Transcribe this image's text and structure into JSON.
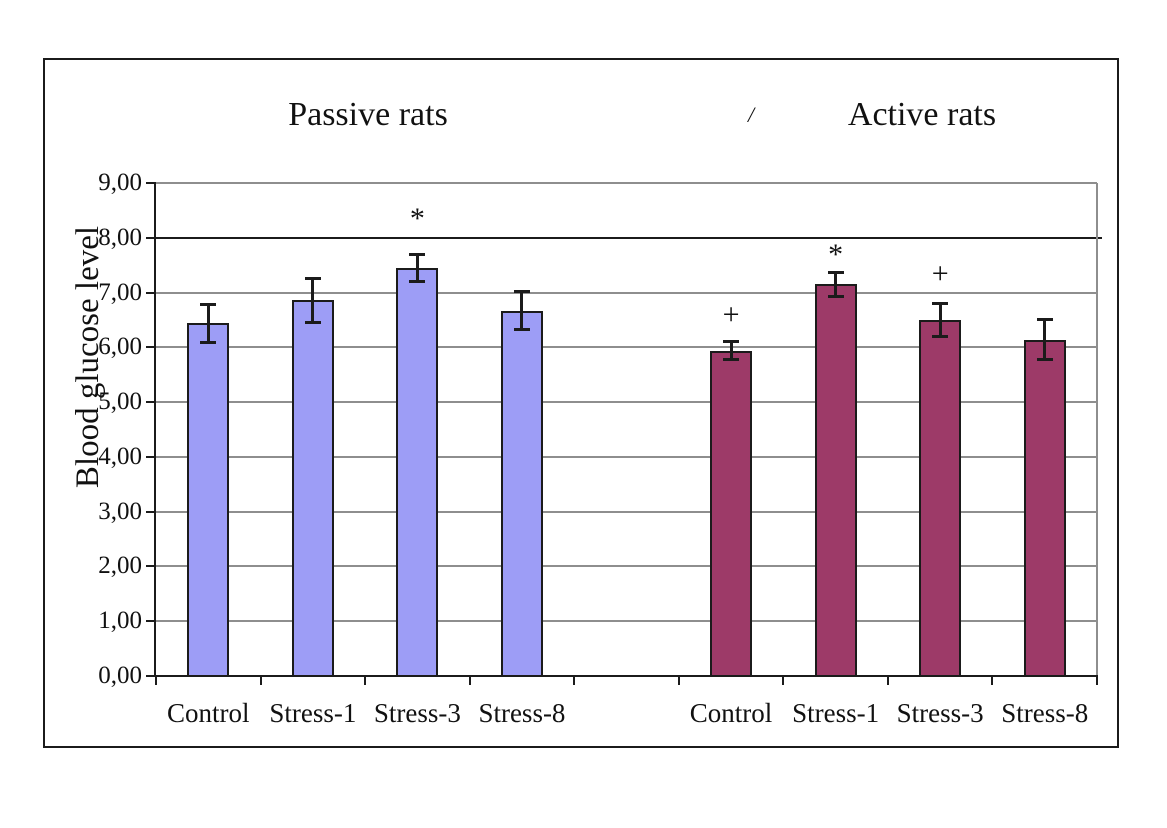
{
  "figure": {
    "left_title": "Passive rats",
    "right_title": "Active rats",
    "stray_mark": "/"
  },
  "chart_data": {
    "type": "bar",
    "ylabel": "Blood glucose level",
    "ylim": [
      0,
      9
    ],
    "grid": true,
    "highlight_gridline": 8,
    "y_tick_labels": [
      "0,00",
      "1,00",
      "2,00",
      "3,00",
      "4,00",
      "5,00",
      "6,00",
      "7,00",
      "8,00",
      "9,00"
    ],
    "categories": [
      "Control",
      "Stress-1",
      "Stress-3",
      "Stress-8"
    ],
    "series": [
      {
        "name": "Passive rats",
        "color": "#9d9df6",
        "values": [
          6.44,
          6.86,
          7.45,
          6.67
        ],
        "errors": [
          0.36,
          0.41,
          0.26,
          0.35
        ],
        "annotations": [
          null,
          null,
          {
            "symbol": "*",
            "y": 8.42
          },
          null
        ]
      },
      {
        "name": "Active rats",
        "color": "#9d3a68",
        "values": [
          5.94,
          7.15,
          6.5,
          6.14
        ],
        "errors": [
          0.18,
          0.23,
          0.31,
          0.38
        ],
        "annotations": [
          {
            "symbol": "+",
            "y": 6.57
          },
          {
            "symbol": "*",
            "y": 7.76
          },
          {
            "symbol": "+",
            "y": 7.32
          },
          null
        ]
      }
    ]
  }
}
